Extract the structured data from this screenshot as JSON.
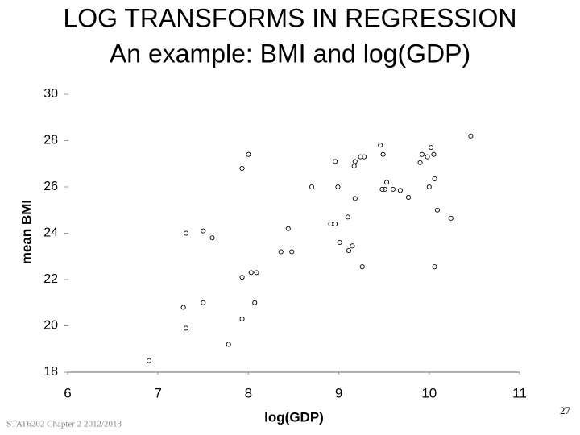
{
  "slide": {
    "title_lines": [
      "LOG TRANSFORMS IN REGRESSION",
      "An example: BMI and log(GDP)"
    ],
    "footer": "STAT6202 Chapter 2 2012/2013",
    "page_number": "27"
  },
  "chart_data": {
    "type": "scatter",
    "x_label": "log(GDP)",
    "y_label": "mean BMI",
    "x": [
      6.9,
      7.28,
      7.31,
      7.31,
      7.5,
      7.5,
      7.6,
      7.78,
      7.93,
      7.93,
      7.93,
      8.0,
      8.03,
      8.09,
      8.07,
      8.36,
      8.48,
      8.44,
      8.7,
      8.91,
      8.96,
      8.96,
      8.99,
      9.01,
      9.1,
      9.11,
      9.15,
      9.17,
      9.18,
      9.18,
      9.24,
      9.28,
      9.26,
      9.46,
      9.48,
      9.49,
      9.51,
      9.53,
      9.6,
      9.68,
      9.77,
      9.9,
      9.92,
      9.98,
      10.02,
      10.0,
      10.05,
      10.06,
      10.06,
      10.09,
      10.24,
      10.46
    ],
    "values": [
      18.5,
      20.8,
      19.9,
      24.0,
      21.0,
      24.1,
      23.8,
      19.2,
      20.3,
      22.1,
      26.8,
      27.4,
      22.3,
      22.3,
      21.0,
      23.2,
      23.2,
      24.2,
      26.0,
      24.4,
      24.4,
      27.1,
      26.0,
      23.6,
      24.7,
      23.25,
      23.45,
      26.9,
      27.1,
      25.5,
      27.3,
      27.3,
      22.55,
      27.8,
      25.9,
      27.4,
      25.9,
      26.2,
      25.9,
      25.85,
      25.55,
      27.05,
      27.4,
      27.3,
      27.7,
      26.0,
      27.4,
      22.55,
      26.35,
      25.0,
      24.65,
      28.2
    ],
    "color": "#000000",
    "xlim": [
      6,
      11
    ],
    "xticks": [
      6,
      7,
      8,
      9,
      10,
      11
    ],
    "ylim": [
      18,
      30
    ],
    "yticks": [
      18,
      20,
      22,
      24,
      26,
      28,
      30
    ]
  }
}
